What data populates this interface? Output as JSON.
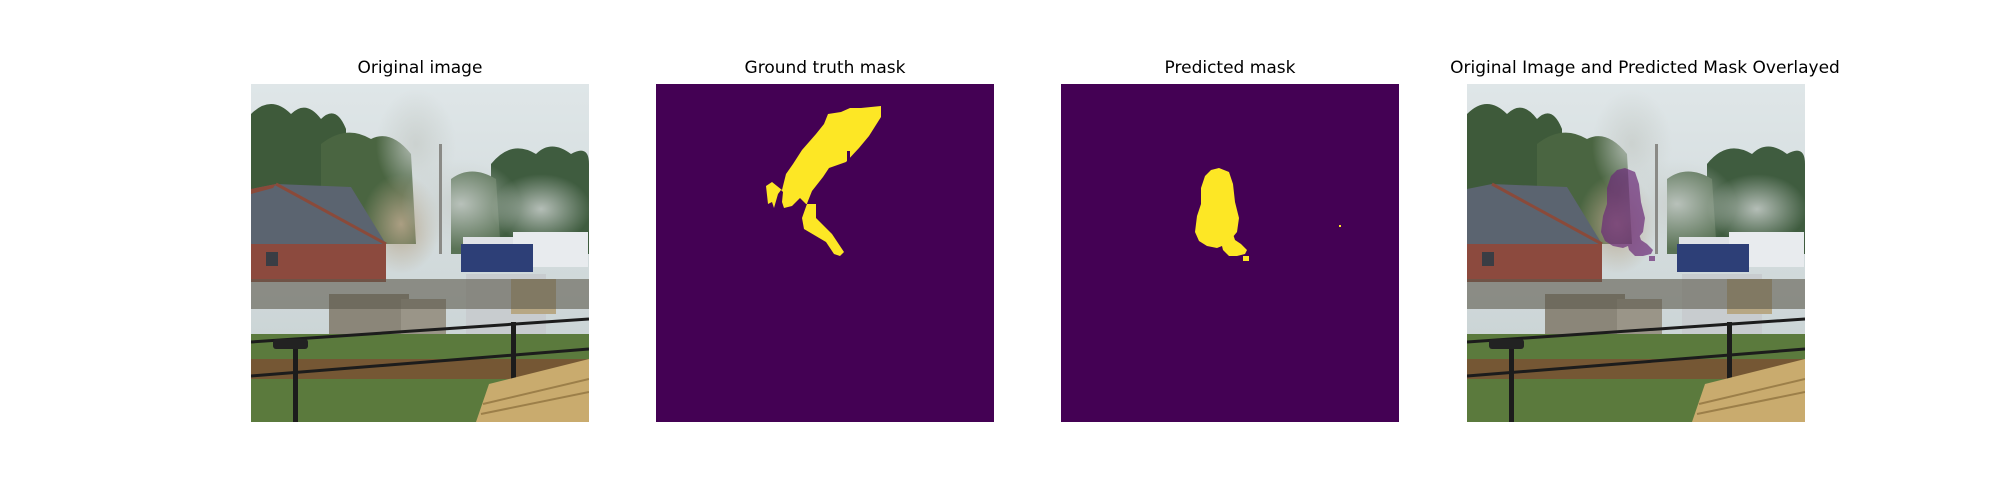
{
  "figure": {
    "panels": [
      {
        "title": "Original image",
        "content": "outdoor scene with smoke rising behind a brick building, trees, fence, vans and stacked wood"
      },
      {
        "title": "Ground truth mask",
        "content": "binary segmentation mask, yellow smoke region on purple background"
      },
      {
        "title": "Predicted mask",
        "content": "binary segmentation mask, yellow predicted smoke region on purple background"
      },
      {
        "title": "Original Image and Predicted Mask Overlayed",
        "content": "original photo with translucent purple overlay on predicted smoke region"
      }
    ]
  },
  "colors": {
    "mask_background": "#440154",
    "mask_foreground": "#fde725",
    "overlay": "#6b2a78"
  }
}
